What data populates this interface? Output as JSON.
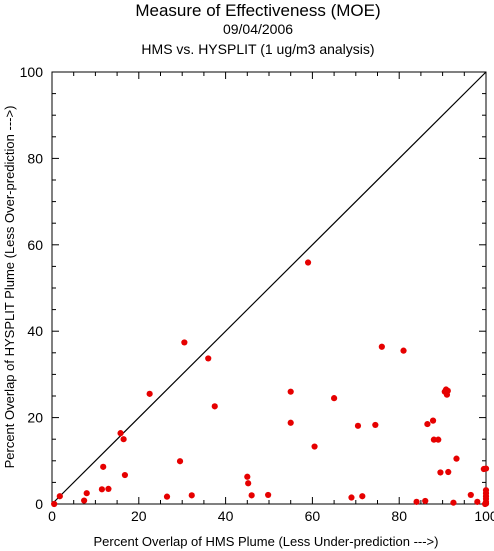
{
  "chart_data": {
    "type": "scatter",
    "title": "Measure of Effectiveness (MOE)",
    "subtitle_date": "09/04/2006",
    "subtitle_analysis": "HMS vs. HYSPLIT  (1 ug/m3 analysis)",
    "xlabel": "Percent Overlap of HMS Plume (Less Under-prediction --->)",
    "ylabel": "Percent Overlap of HYSPLIT Plume (Less Over-prediction --->)",
    "xlim": [
      0,
      100
    ],
    "ylim": [
      0,
      100
    ],
    "xticks": [
      0,
      20,
      40,
      60,
      80,
      100
    ],
    "yticks": [
      0,
      20,
      40,
      60,
      80,
      100
    ],
    "grid": false,
    "diagonal_line": true,
    "point_color": "#e60000",
    "points": [
      [
        0.5,
        0
      ],
      [
        1.8,
        1.8
      ],
      [
        7.4,
        0.8
      ],
      [
        8.0,
        2.5
      ],
      [
        11.5,
        3.4
      ],
      [
        11.8,
        8.6
      ],
      [
        13.0,
        3.5
      ],
      [
        15.8,
        16.4
      ],
      [
        16.5,
        15.0
      ],
      [
        16.8,
        6.7
      ],
      [
        22.5,
        25.5
      ],
      [
        26.5,
        1.7
      ],
      [
        29.5,
        9.9
      ],
      [
        30.5,
        37.4
      ],
      [
        32.2,
        2.0
      ],
      [
        36.0,
        33.7
      ],
      [
        37.5,
        22.6
      ],
      [
        45.0,
        6.3
      ],
      [
        45.2,
        4.8
      ],
      [
        46.0,
        2.0
      ],
      [
        49.8,
        2.1
      ],
      [
        55.0,
        18.8
      ],
      [
        55.0,
        26.0
      ],
      [
        59.0,
        55.9
      ],
      [
        60.5,
        13.3
      ],
      [
        65.0,
        24.5
      ],
      [
        69.0,
        1.5
      ],
      [
        70.5,
        18.1
      ],
      [
        71.5,
        1.8
      ],
      [
        74.5,
        18.3
      ],
      [
        76.0,
        36.4
      ],
      [
        81.0,
        35.5
      ],
      [
        84.0,
        0.5
      ],
      [
        86.0,
        0.7
      ],
      [
        86.5,
        18.5
      ],
      [
        87.8,
        19.3
      ],
      [
        88.0,
        14.9
      ],
      [
        89.0,
        14.9
      ],
      [
        89.5,
        7.3
      ],
      [
        90.5,
        26.0
      ],
      [
        90.8,
        26.5
      ],
      [
        91.0,
        25.3
      ],
      [
        91.2,
        26.2
      ],
      [
        91.3,
        7.4
      ],
      [
        92.5,
        0.3
      ],
      [
        93.2,
        10.5
      ],
      [
        96.5,
        2.1
      ],
      [
        98.0,
        0.5
      ],
      [
        99.5,
        8.1
      ],
      [
        100.0,
        8.2
      ],
      [
        100.0,
        3.2
      ],
      [
        100.0,
        2.5
      ],
      [
        100.0,
        1.8
      ],
      [
        100.0,
        1.2
      ],
      [
        100.0,
        0.5
      ],
      [
        100.0,
        0.1
      ],
      [
        99.8,
        0
      ]
    ]
  }
}
